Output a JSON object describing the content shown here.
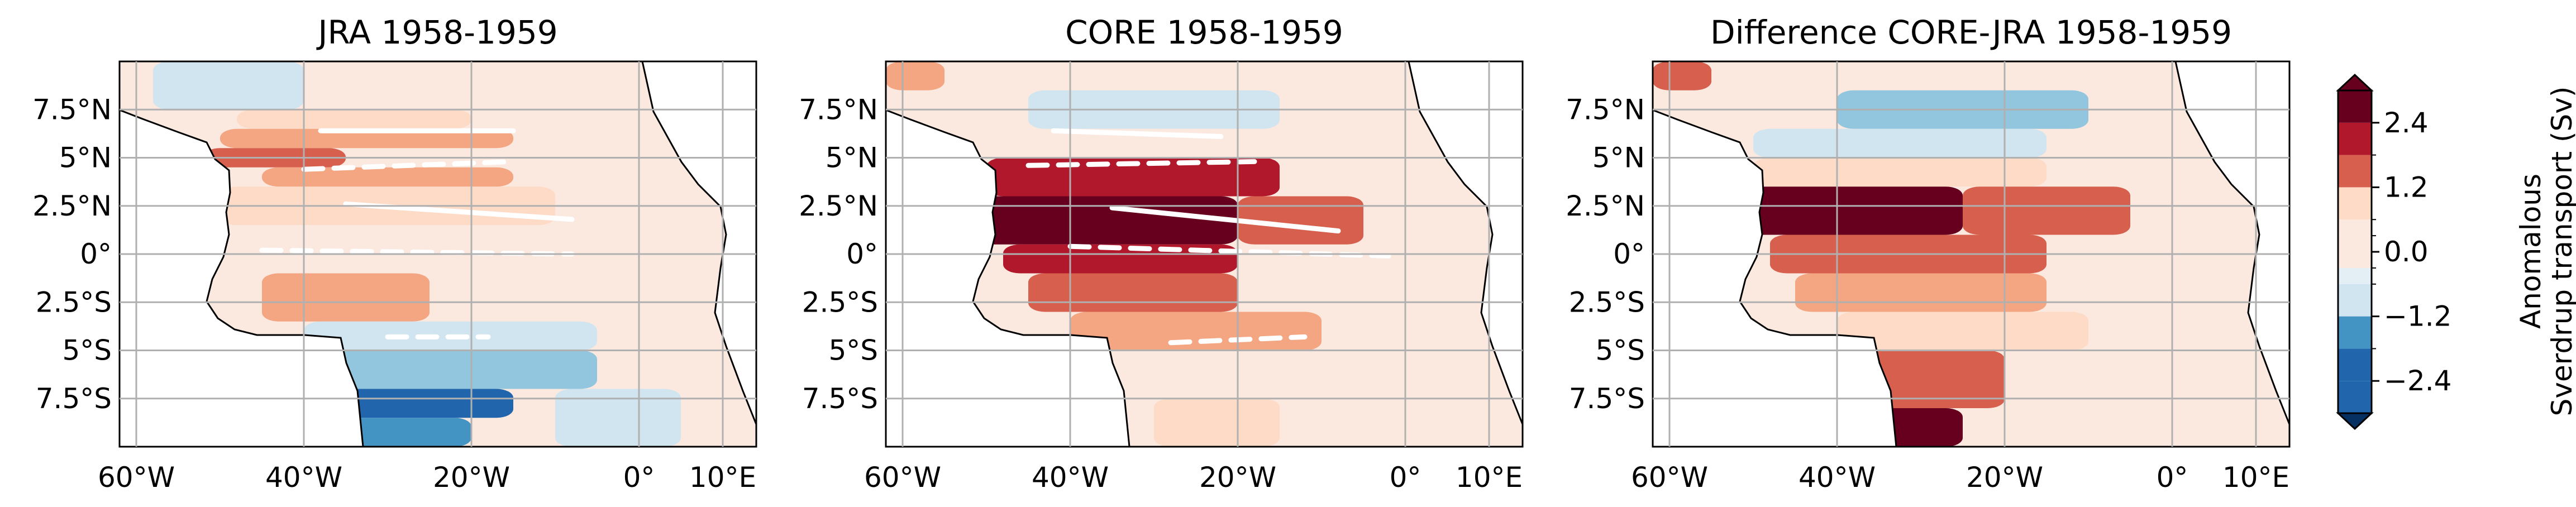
{
  "colors": {
    "dark_red": "#67001f",
    "red": "#b2182b",
    "mid_red": "#d6604d",
    "salmon": "#f4a582",
    "light_salmon": "#fddbc7",
    "pale_salmon": "#fbe9df",
    "pale_blue": "#e3eef5",
    "light_blue": "#d1e5f0",
    "sky_blue": "#92c5de",
    "mid_blue": "#4393c3",
    "blue": "#2166ac",
    "land": "#ffffff",
    "grid": "#b0b0b0",
    "contour_line": "#ffffff"
  },
  "chart_data": [
    {
      "type": "heatmap",
      "title": "JRA 1958-1959",
      "x_ticks": [
        "60°W",
        "40°W",
        "20°W",
        "0°",
        "10°E"
      ],
      "y_ticks": [
        "7.5°N",
        "5°N",
        "2.5°N",
        "0°",
        "2.5°S",
        "5°S",
        "7.5°S"
      ],
      "xlim": [
        -62,
        14
      ],
      "ylim": [
        -10,
        10
      ],
      "grid": true,
      "bands": [
        {
          "lat": [
            7.5,
            10
          ],
          "lon": [
            -58,
            -40
          ],
          "level": -0.6
        },
        {
          "lat": [
            6.5,
            7.5
          ],
          "lon": [
            -48,
            -20
          ],
          "level": 0.6
        },
        {
          "lat": [
            5.5,
            6.5
          ],
          "lon": [
            -50,
            -15
          ],
          "level": 1.2
        },
        {
          "lat": [
            4.5,
            5.5
          ],
          "lon": [
            -52,
            -35
          ],
          "level": 1.8
        },
        {
          "lat": [
            3.5,
            4.5
          ],
          "lon": [
            -45,
            -15
          ],
          "level": 1.2
        },
        {
          "lat": [
            1.5,
            3.5
          ],
          "lon": [
            -50,
            -10
          ],
          "level": 0.6
        },
        {
          "lat": [
            -1,
            1.5
          ],
          "lon": [
            -48,
            -10
          ],
          "level": 0.3
        },
        {
          "lat": [
            -3.5,
            -1
          ],
          "lon": [
            -45,
            -25
          ],
          "level": 0.9
        },
        {
          "lat": [
            -5,
            -3.5
          ],
          "lon": [
            -40,
            -5
          ],
          "level": -0.6
        },
        {
          "lat": [
            -7,
            -5
          ],
          "lon": [
            -40,
            -5
          ],
          "level": -1.2
        },
        {
          "lat": [
            -8.5,
            -7
          ],
          "lon": [
            -40,
            -15
          ],
          "level": -2.4
        },
        {
          "lat": [
            -10,
            -8.5
          ],
          "lon": [
            -40,
            -20
          ],
          "level": -1.8
        },
        {
          "lat": [
            -10,
            -7
          ],
          "lon": [
            -10,
            5
          ],
          "level": -0.6
        }
      ],
      "white_lines": [
        {
          "style": "dashed",
          "lon": [
            -40,
            -15
          ],
          "lat": [
            4.4,
            4.8
          ]
        },
        {
          "style": "solid",
          "lon": [
            -38,
            -15
          ],
          "lat": [
            6.4,
            6.4
          ]
        },
        {
          "style": "solid",
          "lon": [
            -35,
            -8
          ],
          "lat": [
            2.6,
            1.8
          ]
        },
        {
          "style": "dashed",
          "lon": [
            -45,
            -8
          ],
          "lat": [
            0.2,
            0.0
          ]
        },
        {
          "style": "dashed",
          "lon": [
            -30,
            -18
          ],
          "lat": [
            -4.3,
            -4.3
          ]
        }
      ]
    },
    {
      "type": "heatmap",
      "title": "CORE 1958-1959",
      "x_ticks": [
        "60°W",
        "40°W",
        "20°W",
        "0°",
        "10°E"
      ],
      "y_ticks": [
        "7.5°N",
        "5°N",
        "2.5°N",
        "0°",
        "2.5°S",
        "5°S",
        "7.5°S"
      ],
      "xlim": [
        -62,
        14
      ],
      "ylim": [
        -10,
        10
      ],
      "grid": true,
      "bands": [
        {
          "lat": [
            8.5,
            10
          ],
          "lon": [
            -62,
            -55
          ],
          "level": 1.2
        },
        {
          "lat": [
            6.5,
            8.5
          ],
          "lon": [
            -45,
            -15
          ],
          "level": -0.6
        },
        {
          "lat": [
            5,
            6.5
          ],
          "lon": [
            -50,
            -20
          ],
          "level": 0.3
        },
        {
          "lat": [
            3,
            5
          ],
          "lon": [
            -50,
            -15
          ],
          "level": 2.4
        },
        {
          "lat": [
            0.5,
            3
          ],
          "lon": [
            -52,
            -20
          ],
          "level": 3.0
        },
        {
          "lat": [
            0.5,
            3
          ],
          "lon": [
            -20,
            -5
          ],
          "level": 1.8
        },
        {
          "lat": [
            -1,
            0.5
          ],
          "lon": [
            -48,
            -20
          ],
          "level": 2.4
        },
        {
          "lat": [
            -3,
            -1
          ],
          "lon": [
            -45,
            -20
          ],
          "level": 1.8
        },
        {
          "lat": [
            -5,
            -3
          ],
          "lon": [
            -40,
            -10
          ],
          "level": 0.9
        },
        {
          "lat": [
            -7.5,
            -5
          ],
          "lon": [
            -35,
            -15
          ],
          "level": 0.3
        },
        {
          "lat": [
            -10,
            -7.5
          ],
          "lon": [
            -30,
            -15
          ],
          "level": 0.6
        }
      ],
      "white_lines": [
        {
          "style": "dashed",
          "lon": [
            -45,
            -18
          ],
          "lat": [
            4.6,
            4.8
          ]
        },
        {
          "style": "solid",
          "lon": [
            -42,
            -22
          ],
          "lat": [
            6.4,
            6.1
          ]
        },
        {
          "style": "solid",
          "lon": [
            -35,
            -8
          ],
          "lat": [
            2.4,
            1.2
          ]
        },
        {
          "style": "dashed",
          "lon": [
            -40,
            -2
          ],
          "lat": [
            0.4,
            -0.1
          ]
        },
        {
          "style": "dashed",
          "lon": [
            -28,
            -12
          ],
          "lat": [
            -4.6,
            -4.3
          ]
        }
      ]
    },
    {
      "type": "heatmap",
      "title": "Difference CORE-JRA 1958-1959",
      "x_ticks": [
        "60°W",
        "40°W",
        "20°W",
        "0°",
        "10°E"
      ],
      "y_ticks": [
        "7.5°N",
        "5°N",
        "2.5°N",
        "0°",
        "2.5°S",
        "5°S",
        "7.5°S"
      ],
      "xlim": [
        -62,
        14
      ],
      "ylim": [
        -10,
        10
      ],
      "grid": true,
      "bands": [
        {
          "lat": [
            8.5,
            10
          ],
          "lon": [
            -62,
            -55
          ],
          "level": 1.8
        },
        {
          "lat": [
            6.5,
            8.5
          ],
          "lon": [
            -40,
            -10
          ],
          "level": -1.2
        },
        {
          "lat": [
            5,
            6.5
          ],
          "lon": [
            -50,
            -15
          ],
          "level": -0.6
        },
        {
          "lat": [
            3.5,
            5
          ],
          "lon": [
            -50,
            -15
          ],
          "level": 0.6
        },
        {
          "lat": [
            1,
            3.5
          ],
          "lon": [
            -52,
            -25
          ],
          "level": 3.0
        },
        {
          "lat": [
            1,
            3.5
          ],
          "lon": [
            -25,
            -5
          ],
          "level": 1.8
        },
        {
          "lat": [
            -1,
            1
          ],
          "lon": [
            -48,
            -15
          ],
          "level": 1.8
        },
        {
          "lat": [
            -3,
            -1
          ],
          "lon": [
            -45,
            -15
          ],
          "level": 1.2
        },
        {
          "lat": [
            -5,
            -3
          ],
          "lon": [
            -40,
            -10
          ],
          "level": 0.6
        },
        {
          "lat": [
            -8,
            -5
          ],
          "lon": [
            -40,
            -20
          ],
          "level": 1.8
        },
        {
          "lat": [
            -10,
            -8
          ],
          "lon": [
            -40,
            -25
          ],
          "level": 3.0
        }
      ],
      "white_lines": []
    }
  ],
  "colorbar": {
    "label_line1": "Anomalous",
    "label_line2": "Sverdrup transport (Sv)",
    "ticks": [
      "2.4",
      "1.2",
      "0.0",
      "−1.2",
      "−2.4"
    ],
    "tick_values": [
      2.4,
      1.2,
      0.0,
      -1.2,
      -2.4
    ],
    "levels": [
      -3.0,
      -2.4,
      -1.8,
      -1.2,
      -0.6,
      -0.3,
      0.3,
      0.6,
      1.2,
      1.8,
      2.4,
      3.0
    ],
    "extend": "both"
  }
}
